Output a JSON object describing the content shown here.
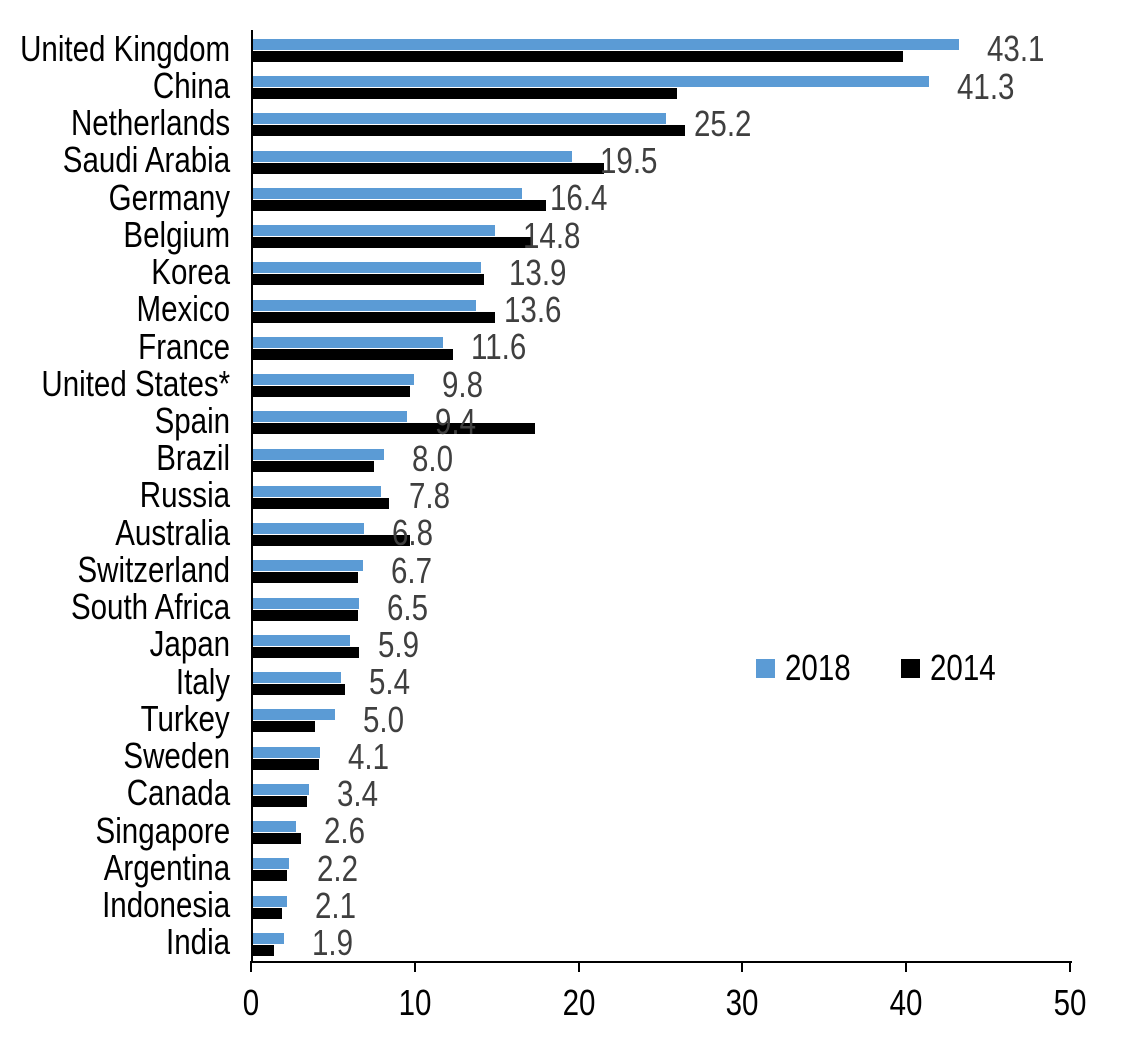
{
  "chart_data": {
    "type": "bar",
    "orientation": "horizontal",
    "categories": [
      "United Kingdom",
      "China",
      "Netherlands",
      "Saudi Arabia",
      "Germany",
      "Belgium",
      "Korea",
      "Mexico",
      "France",
      "United States*",
      "Spain",
      "Brazil",
      "Russia",
      "Australia",
      "Switzerland",
      "South Africa",
      "Japan",
      "Italy",
      "Turkey",
      "Sweden",
      "Canada",
      "Singapore",
      "Argentina",
      "Indonesia",
      "India"
    ],
    "series": [
      {
        "name": "2018",
        "color": "#5b9bd5",
        "data_labels_shown": true,
        "values": [
          43.1,
          41.3,
          25.2,
          19.5,
          16.4,
          14.8,
          13.9,
          13.6,
          11.6,
          9.8,
          9.4,
          8.0,
          7.8,
          6.8,
          6.7,
          6.5,
          5.9,
          5.4,
          5.0,
          4.1,
          3.4,
          2.6,
          2.2,
          2.1,
          1.9
        ]
      },
      {
        "name": "2014",
        "color": "#000000",
        "data_labels_shown": false,
        "values": [
          39.7,
          25.9,
          26.4,
          21.4,
          17.9,
          17.0,
          14.1,
          14.8,
          12.2,
          9.6,
          17.2,
          7.4,
          8.3,
          9.6,
          6.4,
          6.4,
          6.5,
          5.6,
          3.8,
          4.0,
          3.3,
          2.9,
          2.1,
          1.8,
          1.3
        ]
      }
    ],
    "xlim": [
      0,
      50
    ],
    "x_ticks": [
      "0",
      "10",
      "20",
      "30",
      "40",
      "50"
    ],
    "legend": {
      "position": "inside-middle-right",
      "entries": [
        "2018",
        "2014"
      ]
    },
    "grid": "off",
    "value_label_color": "#3f3f3f",
    "axis_color": "#000000"
  }
}
